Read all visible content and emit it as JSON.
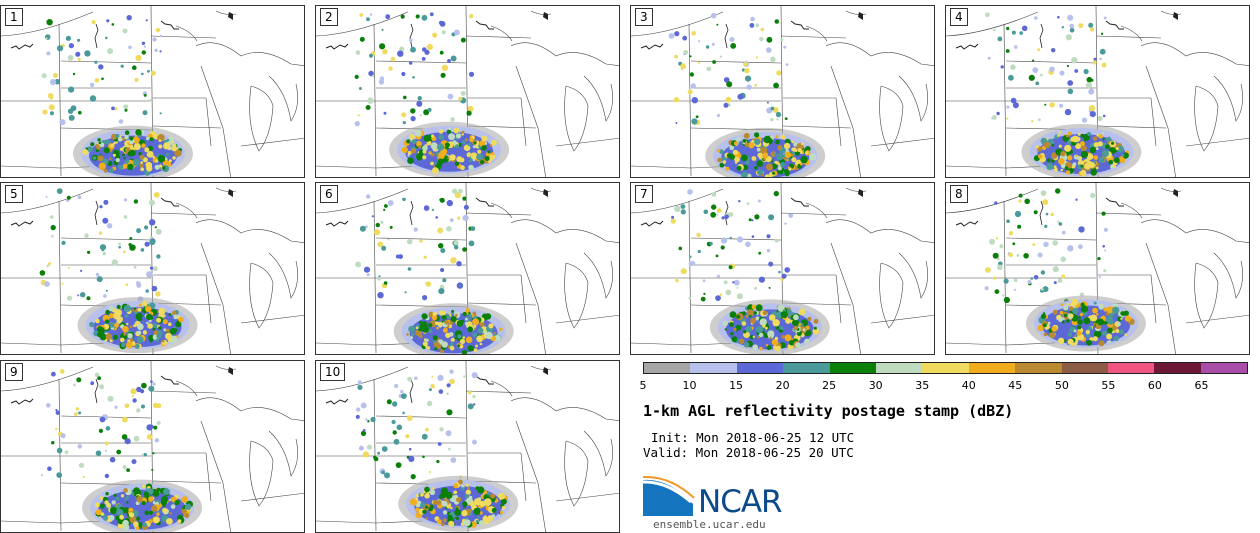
{
  "panels": [
    {
      "label": "1"
    },
    {
      "label": "2"
    },
    {
      "label": "3"
    },
    {
      "label": "4"
    },
    {
      "label": "5"
    },
    {
      "label": "6"
    },
    {
      "label": "7"
    },
    {
      "label": "8"
    },
    {
      "label": "9"
    },
    {
      "label": "10"
    }
  ],
  "colorbar": {
    "colors": [
      "#a6a6a6",
      "#b8c1ec",
      "#5b68d6",
      "#4a9a9a",
      "#0a7f0a",
      "#bfdcc0",
      "#efdc5e",
      "#f0ad1c",
      "#b98a32",
      "#8d5c44",
      "#ef5580",
      "#6e1838",
      "#a84ea6"
    ],
    "ticks": [
      "5",
      "10",
      "15",
      "20",
      "25",
      "30",
      "35",
      "40",
      "45",
      "50",
      "55",
      "60",
      "65"
    ]
  },
  "title": "1-km AGL reflectivity postage stamp (dBZ)",
  "init": "Init: Mon 2018-06-25 12 UTC",
  "valid": "Valid: Mon 2018-06-25 20 UTC",
  "logo": {
    "wordmark": "NCAR",
    "url": "ensemble.ucar.edu"
  }
}
